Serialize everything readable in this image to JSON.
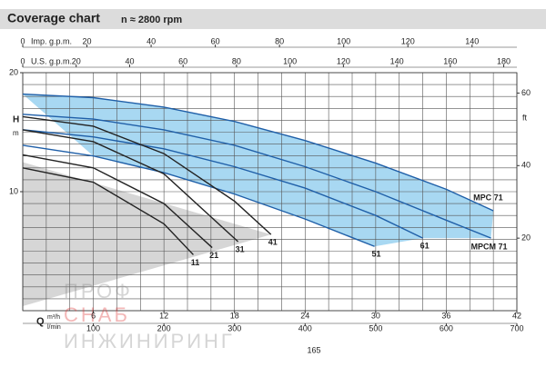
{
  "chart_data": {
    "type": "line",
    "title": "Coverage chart",
    "subtitle": "n ≈ 2800 rpm",
    "y_label": "H",
    "y_unit": "m",
    "y2_label": "ft",
    "x_label": "Q",
    "x_unit": "m³/h",
    "xlim": [
      0,
      42
    ],
    "xticks": [
      6,
      12,
      18,
      24,
      30,
      36,
      42
    ],
    "ylim": [
      0,
      20
    ],
    "yticks": [
      10,
      20
    ],
    "y2lim": [
      0,
      65.62
    ],
    "y2ticks": [
      20,
      40,
      60
    ],
    "grid": true,
    "grid_step": {
      "x": 2,
      "y": 1
    },
    "bottom_axis2": {
      "label": "l/min",
      "lim": [
        0,
        700
      ],
      "ticks": [
        100,
        200,
        300,
        400,
        500,
        600,
        700
      ]
    },
    "top_axes": [
      {
        "label": "Imp. g.p.m.",
        "lim": [
          0,
          153.96
        ],
        "ticks": [
          0,
          20,
          40,
          60,
          80,
          100,
          120,
          140
        ]
      },
      {
        "label": "U.S. g.p.m.",
        "lim": [
          0,
          184.92
        ],
        "ticks": [
          0,
          20,
          40,
          60,
          80,
          100,
          120,
          140,
          160,
          180
        ]
      }
    ],
    "series": [
      {
        "name": "MPC 71",
        "color": "#1f5fa8",
        "x": [
          0,
          6,
          12,
          18,
          24,
          30,
          36,
          40
        ],
        "values": [
          18.2,
          17.9,
          17.1,
          15.9,
          14.3,
          12.4,
          10.2,
          8.4
        ]
      },
      {
        "name": "MPCM 71",
        "color": "#1f5fa8",
        "x": [
          0,
          6,
          12,
          18,
          24,
          30,
          36,
          39.8
        ],
        "values": [
          16.5,
          16.1,
          15.2,
          13.9,
          12.1,
          10.0,
          7.6,
          6.1
        ]
      },
      {
        "name": "61",
        "color": "#1f5fa8",
        "x": [
          0,
          6,
          12,
          18,
          24,
          30,
          34
        ],
        "values": [
          15.2,
          14.6,
          13.6,
          12.1,
          10.3,
          8.0,
          6.1
        ]
      },
      {
        "name": "51",
        "color": "#1f5fa8",
        "x": [
          0,
          6,
          12,
          18,
          24,
          29.9
        ],
        "values": [
          13.9,
          13.0,
          11.6,
          9.8,
          7.7,
          5.4
        ]
      },
      {
        "name": "41",
        "color": "#222222",
        "x": [
          0,
          6,
          12,
          18,
          21.1
        ],
        "values": [
          16.3,
          15.5,
          13.2,
          9.2,
          6.4
        ]
      },
      {
        "name": "31",
        "color": "#222222",
        "x": [
          0,
          6,
          12,
          18.3
        ],
        "values": [
          15.2,
          14.2,
          11.5,
          5.8
        ]
      },
      {
        "name": "21",
        "color": "#222222",
        "x": [
          0,
          6,
          12,
          16.1
        ],
        "values": [
          13.1,
          12.0,
          9.0,
          5.3
        ]
      },
      {
        "name": "11",
        "color": "#222222",
        "x": [
          0,
          6,
          12,
          14.5
        ],
        "values": [
          12.0,
          10.8,
          7.3,
          4.7
        ]
      }
    ],
    "page_number": "165",
    "watermark": [
      "ПРОФ",
      "СНАБ",
      "ИНЖИНИРИНГ"
    ]
  }
}
